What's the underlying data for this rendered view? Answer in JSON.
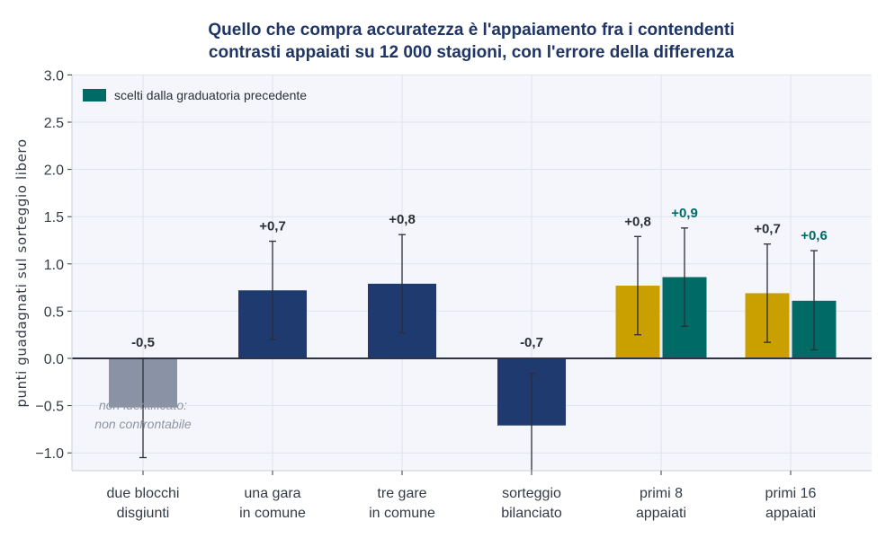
{
  "chart_data": {
    "type": "bar",
    "title": [
      "Quello che compra accuratezza è l'appaiamento fra i contendenti",
      "contrasti appaiati su 12 000 stagioni, con l'errore della differenza"
    ],
    "ylabel": "punti guadagnati sul sorteggio libero",
    "xlabel": "",
    "ylim": [
      -1.2,
      3.0
    ],
    "yticks": [
      3.0,
      2.5,
      2.0,
      1.5,
      1.0,
      0.5,
      0.0,
      -0.5,
      -1.0
    ],
    "ytick_labels": [
      "3.0",
      "2.5",
      "2.0",
      "1.5",
      "1.0",
      "0.5",
      "0.0",
      "−0.5",
      "−1.0"
    ],
    "grid": true,
    "legend": {
      "position": "top-left",
      "entries": [
        {
          "label": "scelti dalla graduatoria precedente",
          "color": "#006b66"
        }
      ]
    },
    "categories": [
      [
        "due blocchi",
        "disgiunti"
      ],
      [
        "una gara",
        "in comune"
      ],
      [
        "tre gare",
        "in comune"
      ],
      [
        "sorteggio",
        "bilanciato"
      ],
      [
        "primi 8",
        "appaiati"
      ],
      [
        "primi 16",
        "appaiati"
      ]
    ],
    "bars": [
      {
        "category_index": 0,
        "value": -0.52,
        "err_low": -1.05,
        "err_high": 0.0,
        "label": "-0,5",
        "color": "#8a93a6",
        "label_color": "#2b2f36",
        "offset": "center"
      },
      {
        "category_index": 1,
        "value": 0.72,
        "err_low": 0.2,
        "err_high": 1.24,
        "label": "+0,7",
        "color": "#1f3a6e",
        "label_color": "#2b2f36",
        "offset": "center"
      },
      {
        "category_index": 2,
        "value": 0.79,
        "err_low": 0.27,
        "err_high": 1.31,
        "label": "+0,8",
        "color": "#1f3a6e",
        "label_color": "#2b2f36",
        "offset": "center"
      },
      {
        "category_index": 3,
        "value": -0.71,
        "err_low": -1.23,
        "err_high": -0.16,
        "label": "-0,7",
        "color": "#1f3a6e",
        "label_color": "#2b2f36",
        "offset": "center"
      },
      {
        "category_index": 4,
        "value": 0.77,
        "err_low": 0.25,
        "err_high": 1.29,
        "label": "+0,8",
        "color": "#c9a000",
        "label_color": "#2b2f36",
        "offset": "left"
      },
      {
        "category_index": 4,
        "value": 0.86,
        "err_low": 0.34,
        "err_high": 1.38,
        "label": "+0,9",
        "color": "#006b66",
        "label_color": "#006b66",
        "offset": "right"
      },
      {
        "category_index": 5,
        "value": 0.69,
        "err_low": 0.17,
        "err_high": 1.21,
        "label": "+0,7",
        "color": "#c9a000",
        "label_color": "#2b2f36",
        "offset": "left"
      },
      {
        "category_index": 5,
        "value": 0.61,
        "err_low": 0.09,
        "err_high": 1.14,
        "label": "+0,6",
        "color": "#006b66",
        "label_color": "#006b66",
        "offset": "right"
      }
    ],
    "annotations": [
      {
        "category_index": 0,
        "lines": [
          "non identificato:",
          "non confrontabile"
        ]
      }
    ]
  }
}
